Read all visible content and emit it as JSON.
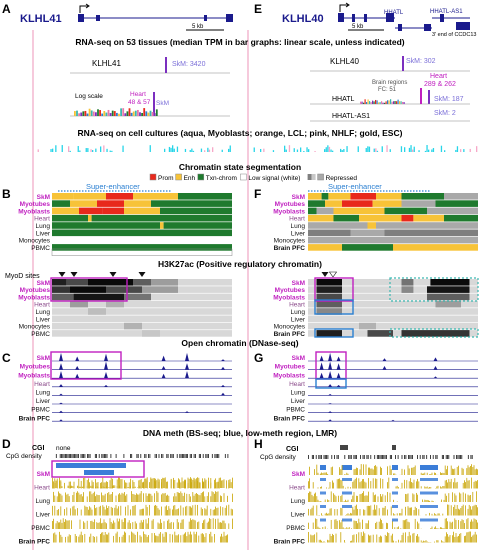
{
  "panel_letters": {
    "A": "A",
    "B": "B",
    "C": "C",
    "D": "D",
    "E": "E",
    "F": "F",
    "G": "G",
    "H": "H"
  },
  "genes": {
    "left_title": "KLHL41",
    "right_title": "KLHL40",
    "right_gene_hhatl": "HHATL",
    "right_gene_as1": "HHATL-AS1",
    "right_end_note": "3' end of CCDC13",
    "scale_bar": "5 kb"
  },
  "section_titles": {
    "rnaseq_tissues": "RNA-seq on 53 tissues (median TPM in bar graphs: linear scale, unless indicated)",
    "rnaseq_cultures": "RNA-seq on cell cultures (aqua, Myoblasts; orange, LCL; pink, NHLF; gold, ESC)",
    "chromatin_state": "Chromatin state segmentation",
    "h3k27ac": "H3K27ac (Positive regulatory chromatin)",
    "open_chromatin": "Open chromatin (DNase-seq)",
    "dna_meth": "DNA meth (BS-seq; blue, low-meth region, LMR)"
  },
  "rnaseq_left": {
    "gene": "KLHL41",
    "skm_linear": "SkM: 3420",
    "log_scale": "Log scale",
    "heart_log": "Heart\n48 & 57",
    "skm_log": "SkM"
  },
  "rnaseq_right": {
    "gene_klhl40": "KLHL40",
    "skm_klhl40": "SkM: 302",
    "brain_regions": "Brain regions\nFC: 51",
    "heart_hhatl": "Heart\n289 & 262",
    "gene_hhatl": "HHATL",
    "skm_hhatl": "SkM: 187",
    "gene_as1": "HHATL-AS1",
    "skm_as1": "SkM: 2"
  },
  "legend": [
    {
      "label": "Prom",
      "color": "#e8291c"
    },
    {
      "label": "Enh",
      "color": "#f7c338"
    },
    {
      "label": "Txn-chrom",
      "color": "#1f7a2e"
    },
    {
      "label": "Low signal (white)",
      "color": "#ffffff"
    },
    {
      "label": "Repressed",
      "color": "#a9a9a9"
    }
  ],
  "super_enhancer_label": "Super-enhancer",
  "myod_label": "MyoD sites",
  "rows_left_chrom": [
    "SkM",
    "Myotubes",
    "Myoblasts",
    "Heart",
    "Lung",
    "Liver",
    "Monocytes",
    "PBMC"
  ],
  "rows_right_chrom": [
    "SkM",
    "Myotubes",
    "Myoblasts",
    "Heart",
    "Lung",
    "Liver",
    "Monocytes",
    "Brain PFC"
  ],
  "rows_left_h3": [
    "SkM",
    "Myotubes",
    "Myoblasts",
    "Heart",
    "Lung",
    "Liver",
    "Monocytes",
    "PBMC"
  ],
  "rows_right_h3": [
    "SkM",
    "Myotubes",
    "Myoblasts",
    "Heart",
    "Lung",
    "Liver",
    "Monocytes",
    "Brain PFC"
  ],
  "rows_left_dnase": [
    "SkM",
    "Myotubes",
    "Myoblasts",
    "Heart",
    "Lung",
    "Liver",
    "PBMC",
    "Brain PFC"
  ],
  "rows_right_dnase": [
    "SkM",
    "Myotubes",
    "Myoblasts",
    "Heart",
    "Lung",
    "Liver",
    "PBMC",
    "Brain PFC"
  ],
  "meth_left_top": {
    "cgi": "CGI",
    "none": "none",
    "cpg": "CpG density"
  },
  "meth_right_top": {
    "cgi": "CGI",
    "cpg": "CpG density"
  },
  "rows_meth": [
    "SkM",
    "Heart",
    "Lung",
    "Liver",
    "PBMC",
    "Brain PFC"
  ],
  "colors": {
    "muscle_label": "#c020c0",
    "navy": "#1a1a8c",
    "purple_box": "#c020c0",
    "blue_box": "#2a7fd1",
    "dashed_box": "#3ab7b0",
    "meth_gold": "#c9a400",
    "lmr_blue": "#3b7dd8",
    "pink_line": "#e879a8"
  }
}
